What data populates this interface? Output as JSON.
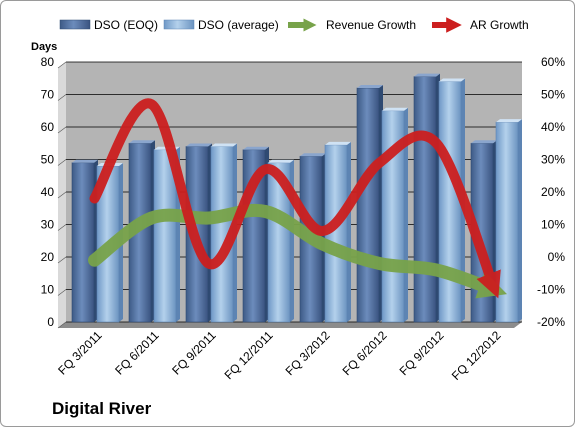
{
  "chart_data": {
    "type": "bar",
    "title": "",
    "caption": "Digital River",
    "ylabel": "Days",
    "ylim": [
      0,
      80
    ],
    "yticks": [
      0,
      10,
      20,
      30,
      40,
      50,
      60,
      70,
      80
    ],
    "y2lim": [
      -20,
      60
    ],
    "y2ticks": [
      "-20%",
      "-10%",
      "0%",
      "10%",
      "20%",
      "30%",
      "40%",
      "50%",
      "60%"
    ],
    "categories": [
      "FQ 3/2011",
      "FQ 6/2011",
      "FQ 9/2011",
      "FQ 12/2011",
      "FQ 3/2012",
      "FQ 6/2012",
      "FQ 9/2012",
      "FQ 12/2012"
    ],
    "series": [
      {
        "name": "DSO (EOQ)",
        "kind": "bar",
        "axis": "left",
        "color": "#4f6f9f",
        "values": [
          49,
          55,
          54,
          53,
          51,
          72,
          75.5,
          55
        ]
      },
      {
        "name": "DSO (average)",
        "kind": "bar",
        "axis": "left",
        "color": "#8fb4d8",
        "values": [
          48,
          53,
          54,
          49,
          54.5,
          65,
          74,
          61.5
        ]
      },
      {
        "name": "Revenue Growth",
        "kind": "line",
        "axis": "right",
        "color": "#78a34a",
        "values": [
          -1,
          12,
          12,
          14,
          4,
          -2,
          -4,
          -10
        ]
      },
      {
        "name": "AR Growth",
        "kind": "line",
        "axis": "right",
        "color": "#cc1f1f",
        "values": [
          18,
          47,
          -2,
          27,
          8,
          29,
          35,
          -9
        ]
      }
    ],
    "grid": true,
    "legend": "top"
  }
}
